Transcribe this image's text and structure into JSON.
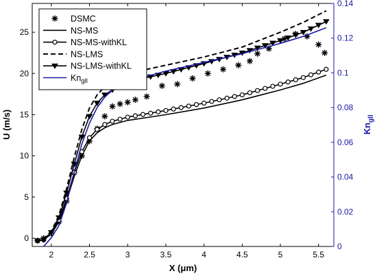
{
  "chart_data": {
    "type": "line",
    "xlabel": "X (μm)",
    "ylabel_left": "U (m/s)",
    "ylabel_right": "Kn",
    "ylabel_right_sub": "gll",
    "xlim": [
      1.75,
      5.7
    ],
    "ylim_left": [
      -1,
      28.5
    ],
    "ylim_right": [
      0,
      0.14
    ],
    "x_ticks": [
      2,
      2.5,
      3,
      3.5,
      4,
      4.5,
      5,
      5.5
    ],
    "x_tick_labels": [
      "2",
      "2.5",
      "3",
      "3.5",
      "4",
      "4.5",
      "5",
      "5.5"
    ],
    "y_left_ticks": [
      0,
      5,
      10,
      15,
      20,
      25
    ],
    "y_left_tick_labels": [
      "0",
      "5",
      "10",
      "15",
      "20",
      "25"
    ],
    "y_right_ticks": [
      0,
      0.02,
      0.04,
      0.06,
      0.08,
      0.1,
      0.12,
      0.14
    ],
    "y_right_tick_labels": [
      "0",
      "0.02",
      "0.04",
      "0.06",
      "0.08",
      "0.1",
      "0.12",
      "0.14"
    ],
    "grid": false,
    "legend_position": "top-left",
    "colors": {
      "black": "#000000",
      "blue": "#1a1aa6"
    },
    "series": [
      {
        "name": "DSMC",
        "axis": "left",
        "style": "markers",
        "marker": "asterisk",
        "x": [
          1.82,
          1.9,
          2.0,
          2.1,
          2.2,
          2.3,
          2.4,
          2.5,
          2.6,
          2.7,
          2.8,
          2.9,
          3.0,
          3.1,
          3.25,
          3.45,
          3.65,
          3.85,
          4.05,
          4.25,
          4.45,
          4.6,
          4.7,
          4.85,
          5.05,
          5.2,
          5.35,
          5.5,
          5.58
        ],
        "y": [
          -0.3,
          0.0,
          0.6,
          2.0,
          4.5,
          8.0,
          10.0,
          11.8,
          13.3,
          14.8,
          16.0,
          16.3,
          16.5,
          16.8,
          17.2,
          18.5,
          18.7,
          19.4,
          20.0,
          20.5,
          21.0,
          21.5,
          22.4,
          23.0,
          24.2,
          24.8,
          24.5,
          23.5,
          22.5
        ]
      },
      {
        "name": "NS-MS",
        "axis": "left",
        "style": "solid",
        "marker": "none",
        "x": [
          1.82,
          1.9,
          2.0,
          2.1,
          2.2,
          2.3,
          2.4,
          2.5,
          2.6,
          2.7,
          2.8,
          3.0,
          3.5,
          4.0,
          4.5,
          5.0,
          5.3,
          5.6
        ],
        "y": [
          -0.3,
          -0.2,
          0.5,
          2.0,
          4.5,
          7.5,
          10.0,
          11.8,
          12.8,
          13.4,
          13.8,
          14.3,
          15.0,
          15.8,
          16.8,
          18.0,
          18.8,
          19.8
        ]
      },
      {
        "name": "NS-MS-withKL",
        "axis": "left",
        "style": "solid",
        "marker": "circle",
        "x": [
          1.82,
          1.9,
          2.0,
          2.1,
          2.2,
          2.3,
          2.4,
          2.5,
          2.6,
          2.7,
          2.8,
          3.0,
          3.5,
          4.0,
          4.5,
          5.0,
          5.3,
          5.6
        ],
        "y": [
          -0.3,
          -0.2,
          0.6,
          2.2,
          4.8,
          8.0,
          10.5,
          12.2,
          13.2,
          13.8,
          14.2,
          14.7,
          15.5,
          16.4,
          17.4,
          18.7,
          19.5,
          20.5
        ]
      },
      {
        "name": "NS-LMS",
        "axis": "left",
        "style": "dashed",
        "marker": "none",
        "x": [
          1.82,
          1.9,
          2.0,
          2.1,
          2.2,
          2.3,
          2.4,
          2.5,
          2.6,
          2.7,
          2.8,
          3.0,
          3.5,
          4.0,
          4.5,
          5.0,
          5.3,
          5.6
        ],
        "y": [
          -0.3,
          -0.2,
          0.8,
          2.8,
          6.0,
          9.8,
          13.2,
          15.8,
          17.4,
          18.4,
          19.0,
          20.0,
          21.0,
          22.0,
          23.2,
          25.0,
          26.2,
          27.6
        ]
      },
      {
        "name": "NS-LMS-withKL",
        "axis": "left",
        "style": "solid",
        "marker": "triangle-down",
        "x": [
          1.82,
          1.9,
          2.0,
          2.1,
          2.2,
          2.3,
          2.4,
          2.5,
          2.6,
          2.7,
          2.8,
          3.0,
          3.5,
          4.0,
          4.5,
          5.0,
          5.3,
          5.6
        ],
        "y": [
          -0.3,
          -0.2,
          0.7,
          2.5,
          5.5,
          9.0,
          12.3,
          14.8,
          16.4,
          17.4,
          18.0,
          19.0,
          20.0,
          21.2,
          22.5,
          24.0,
          25.0,
          26.3
        ]
      },
      {
        "name": "Kn",
        "name_sub": "gll",
        "axis": "right",
        "style": "solid",
        "marker": "none",
        "x": [
          1.9,
          2.0,
          2.1,
          2.2,
          2.3,
          2.4,
          2.5,
          2.6,
          2.7,
          2.8,
          3.0,
          3.5,
          4.0,
          4.5,
          5.0,
          5.3,
          5.6
        ],
        "y": [
          0.0,
          0.005,
          0.012,
          0.025,
          0.043,
          0.059,
          0.071,
          0.08,
          0.086,
          0.09,
          0.095,
          0.101,
          0.106,
          0.111,
          0.117,
          0.121,
          0.126
        ]
      }
    ]
  }
}
